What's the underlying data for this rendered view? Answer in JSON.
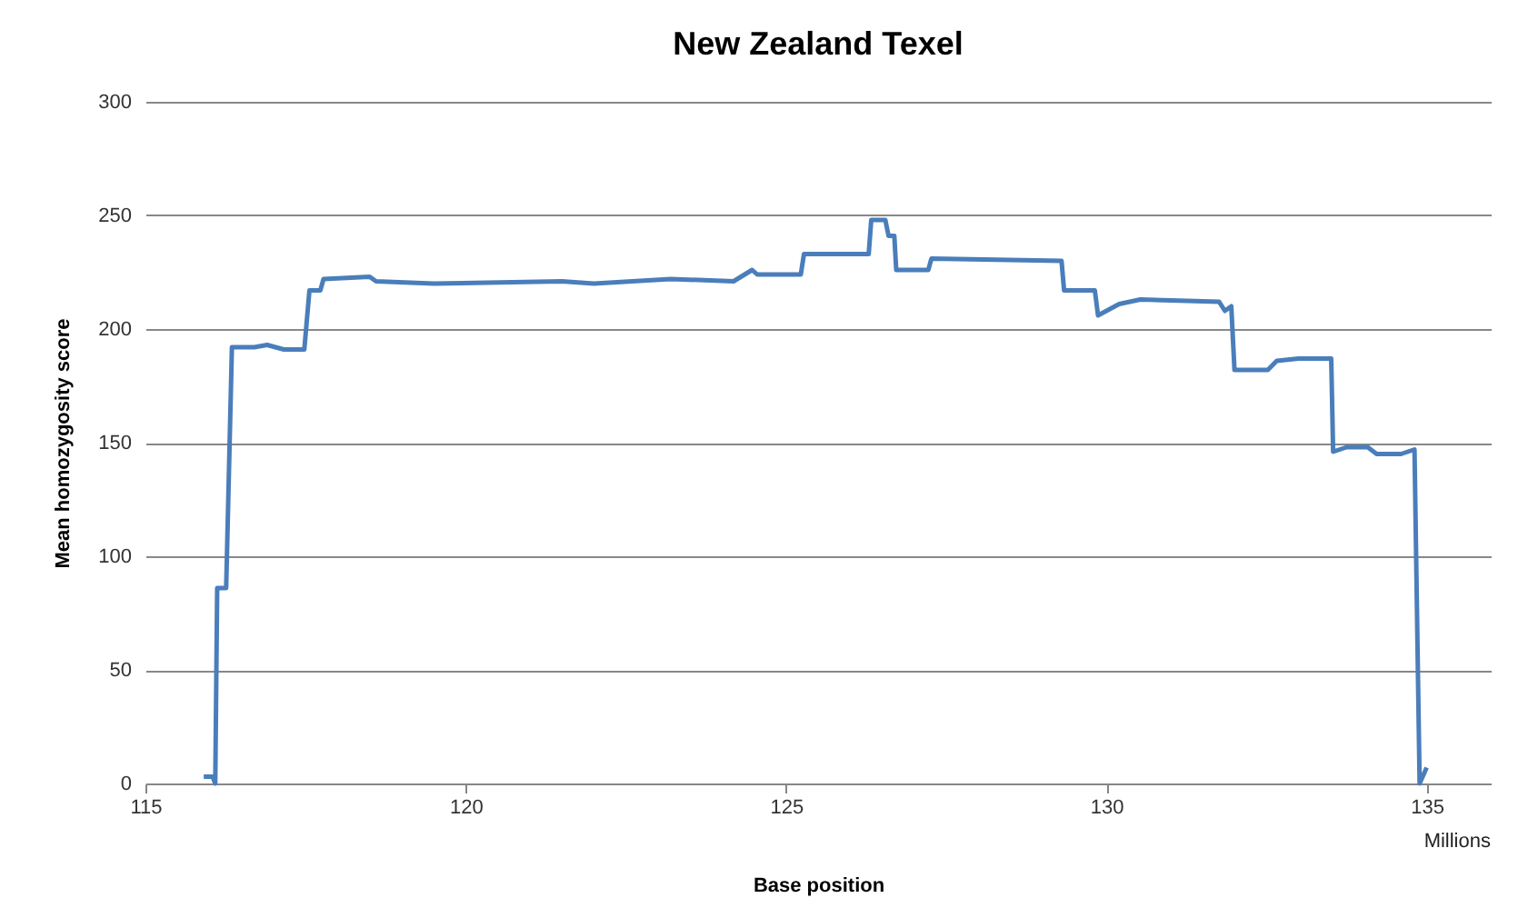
{
  "chart_data": {
    "type": "line",
    "title": "New Zealand Texel",
    "xlabel": "Base position",
    "ylabel": "Mean homozygosity score",
    "annotations": [
      "Millions"
    ],
    "x": [
      115.91,
      116.05,
      116.09,
      116.12,
      116.26,
      116.35,
      116.7,
      116.9,
      117.16,
      117.48,
      117.56,
      117.73,
      117.78,
      118.5,
      118.6,
      119.5,
      121.5,
      122.0,
      122.6,
      123.2,
      124.18,
      124.47,
      124.55,
      125.23,
      125.28,
      126.29,
      126.33,
      126.55,
      126.6,
      126.69,
      126.72,
      127.22,
      127.27,
      129.3,
      129.34,
      129.82,
      129.87,
      130.2,
      130.53,
      131.76,
      131.85,
      131.95,
      132.0,
      132.52,
      132.66,
      133.0,
      133.51,
      133.54,
      133.75,
      134.08,
      134.22,
      134.6,
      134.81,
      134.89,
      135.0
    ],
    "series": [
      {
        "color": "#4a7ebb",
        "values": [
          3,
          3,
          0,
          86,
          86,
          192,
          192,
          193,
          191,
          191,
          217,
          217,
          222,
          223,
          221,
          220,
          221,
          220,
          221,
          222,
          221,
          226,
          224,
          224,
          233,
          233,
          248,
          248,
          241,
          241,
          226,
          226,
          231,
          230,
          217,
          217,
          206,
          211,
          213,
          212,
          208,
          210,
          182,
          182,
          186,
          187,
          187,
          146,
          148,
          148,
          145,
          145,
          147,
          0,
          7
        ]
      }
    ],
    "xlim": [
      115,
      136
    ],
    "xticks": [
      115,
      120,
      125,
      130,
      135
    ],
    "ylim": [
      0,
      300
    ],
    "yticks": [
      0,
      50,
      100,
      150,
      200,
      250,
      300
    ],
    "grid": "y",
    "marker": "none",
    "line_style": "solid"
  }
}
